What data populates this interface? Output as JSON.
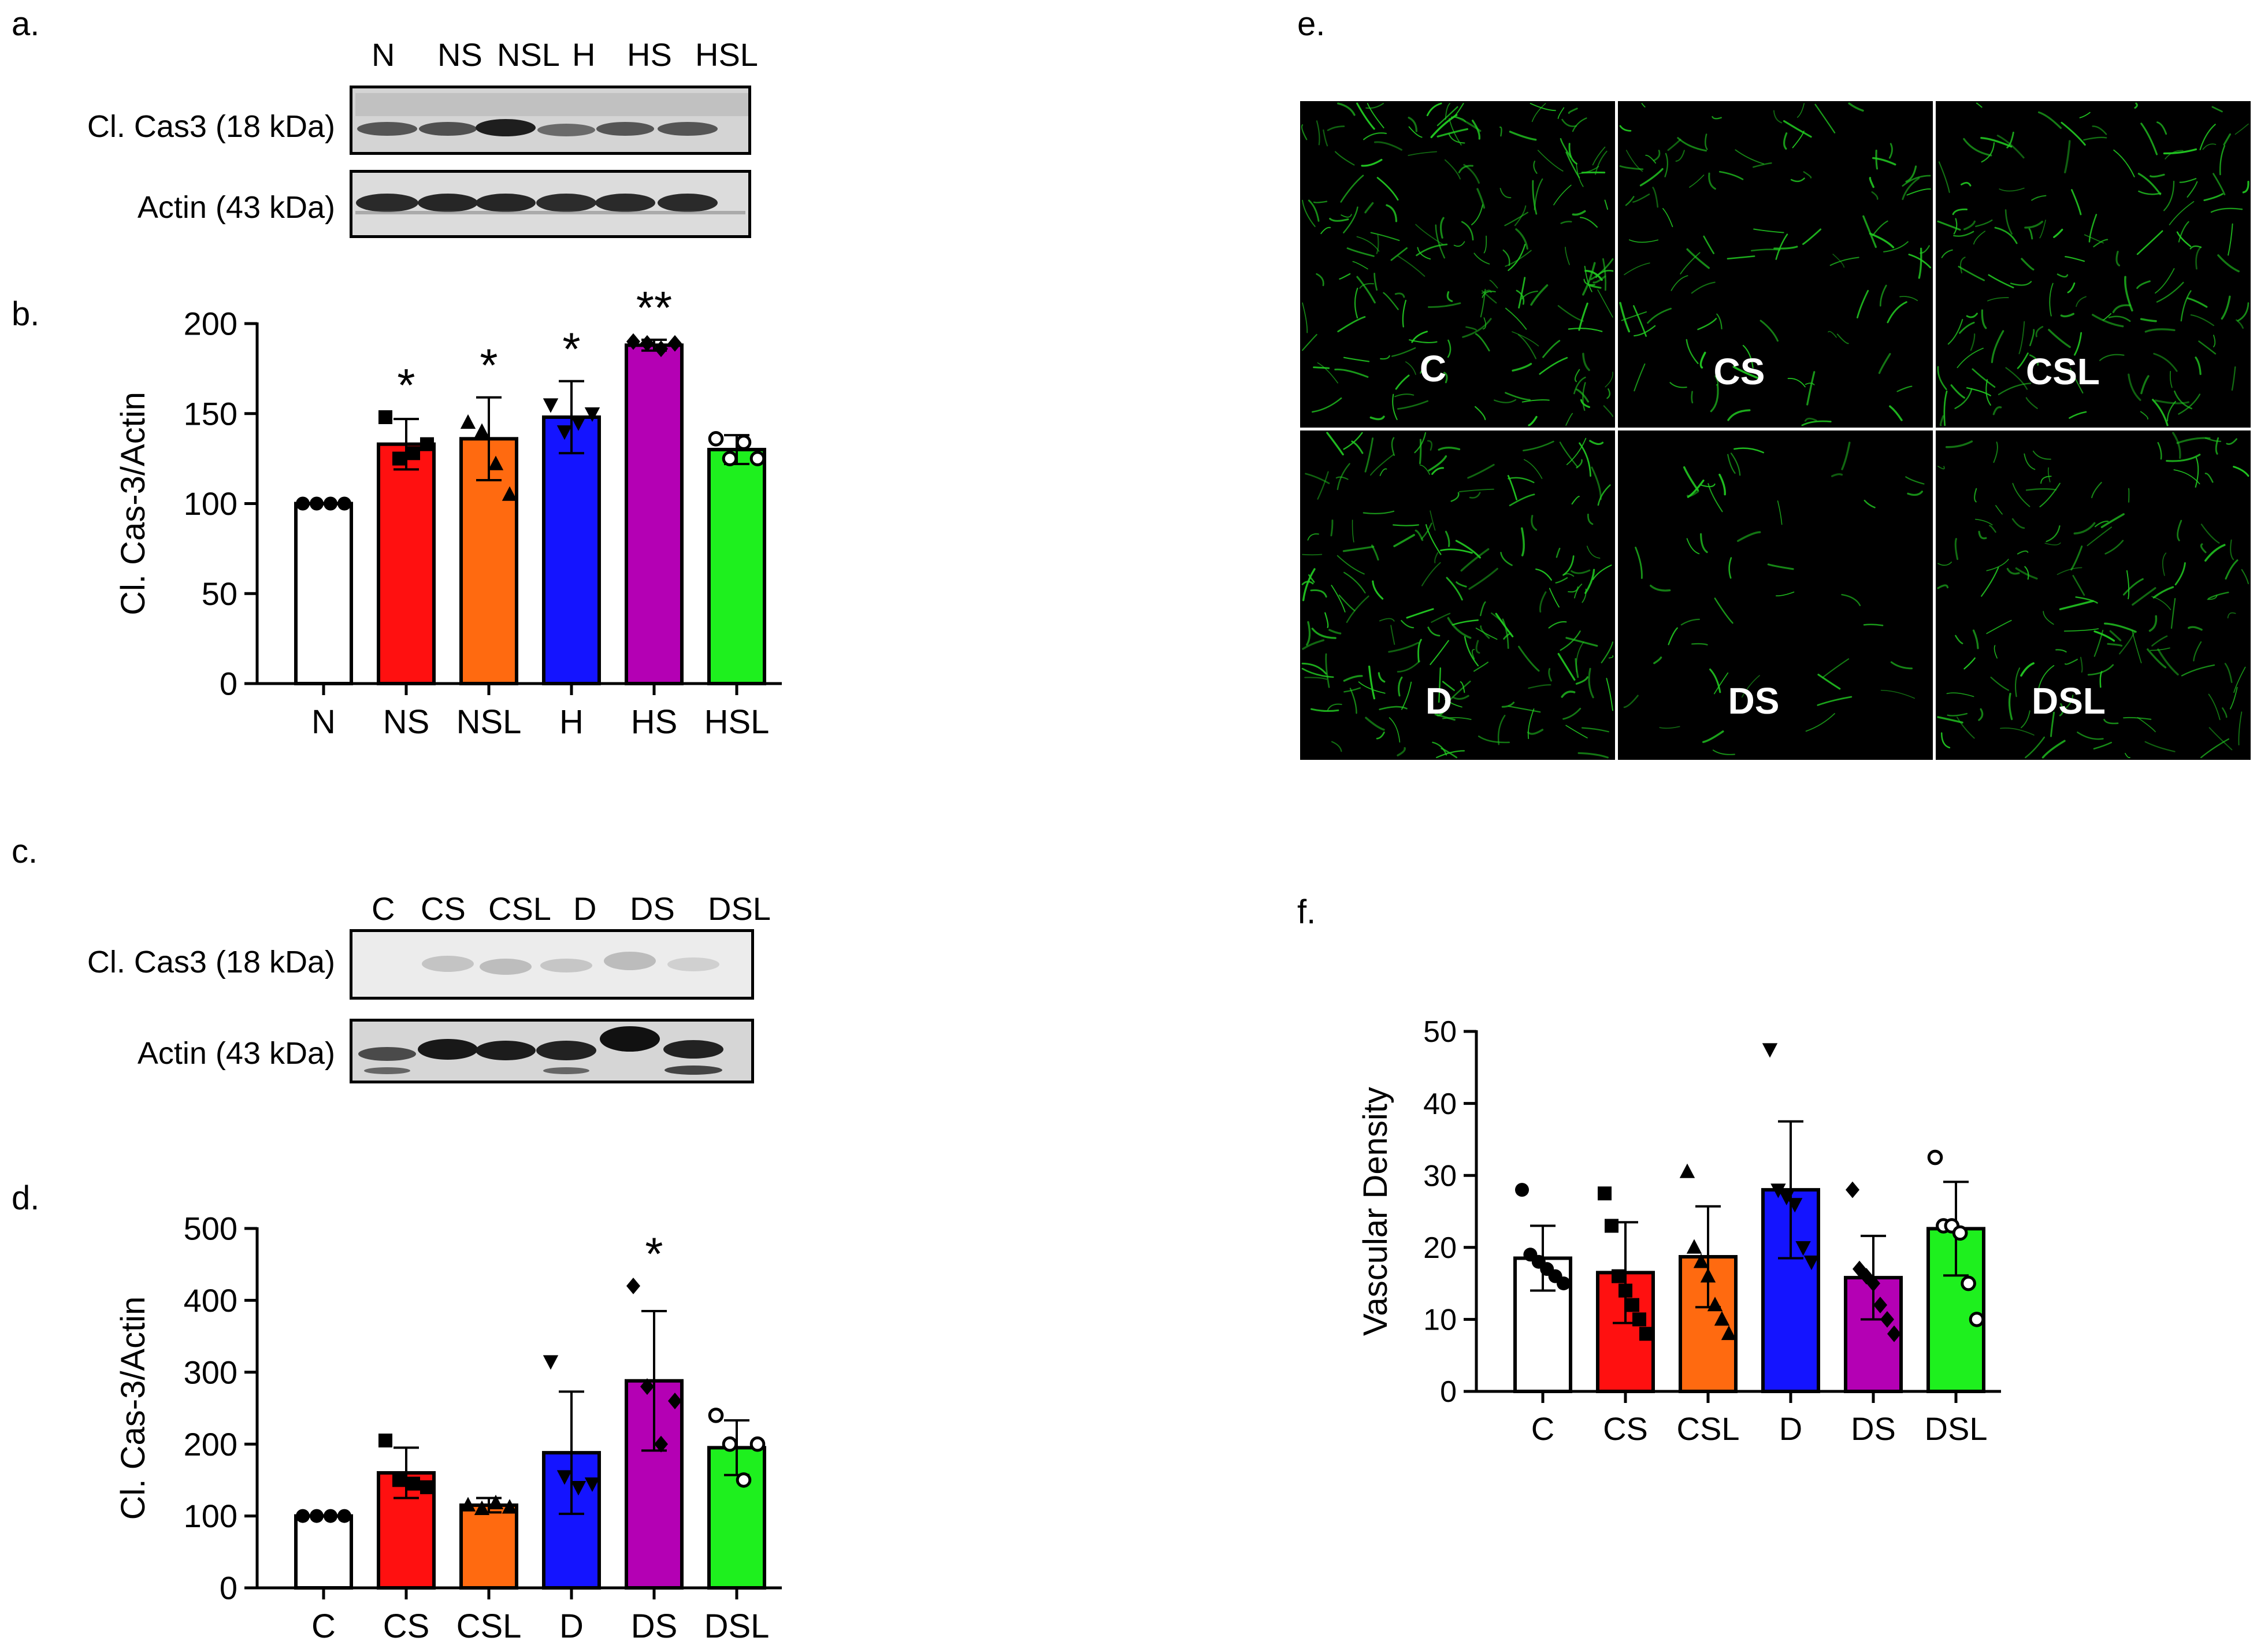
{
  "panels": {
    "a": "a.",
    "b": "b.",
    "c": "c.",
    "d": "d.",
    "e": "e.",
    "f": "f."
  },
  "blot_a": {
    "lanes": [
      "N",
      "NS",
      "NSL",
      "H",
      "HS",
      "HSL"
    ],
    "rows": [
      "Cl. Cas3 (18 kDa)",
      "Actin (43 kDa)"
    ]
  },
  "blot_c": {
    "lanes": [
      "C",
      "CS",
      "CSL",
      "D",
      "DS",
      "DSL"
    ],
    "rows": [
      "Cl. Cas3 (18 kDa)",
      "Actin (43 kDa)"
    ]
  },
  "images_e": {
    "labels": [
      "C",
      "CS",
      "CSL",
      "D",
      "DS",
      "DSL"
    ]
  },
  "colors": {
    "white": "#ffffff",
    "red": "#ff1010",
    "orange": "#ff6a10",
    "blue": "#1414ff",
    "magenta": "#b400b4",
    "green": "#1ef01e",
    "vessel": "#22cc22"
  },
  "chart_data": [
    {
      "id": "b",
      "type": "bar",
      "ylabel": "Cl. Cas-3/Actin",
      "ylim": [
        0,
        200
      ],
      "yticks": [
        0,
        50,
        100,
        150,
        200
      ],
      "categories": [
        "N",
        "NS",
        "NSL",
        "H",
        "HS",
        "HSL"
      ],
      "values": [
        100,
        133,
        136,
        148,
        188,
        130
      ],
      "errors": [
        0,
        14,
        23,
        20,
        3,
        8
      ],
      "colors": [
        "#ffffff",
        "#ff1010",
        "#ff6a10",
        "#1414ff",
        "#b400b4",
        "#1ef01e"
      ],
      "markers": [
        "circle",
        "square",
        "triangle",
        "triangle-down",
        "diamond",
        "circle-open"
      ],
      "points": [
        [
          100,
          100,
          100,
          100
        ],
        [
          148,
          125,
          128,
          133
        ],
        [
          145,
          140,
          122,
          105
        ],
        [
          155,
          140,
          145,
          150
        ],
        [
          190,
          189,
          186,
          189
        ],
        [
          136,
          125,
          134,
          125
        ]
      ],
      "significance": [
        "",
        "*",
        "*",
        "*",
        "**",
        ""
      ]
    },
    {
      "id": "d",
      "type": "bar",
      "ylabel": "Cl. Cas-3/Actin",
      "ylim": [
        0,
        500
      ],
      "yticks": [
        0,
        100,
        200,
        300,
        400,
        500
      ],
      "categories": [
        "C",
        "CS",
        "CSL",
        "D",
        "DS",
        "DSL"
      ],
      "values": [
        100,
        160,
        115,
        188,
        288,
        195
      ],
      "errors": [
        0,
        35,
        10,
        85,
        97,
        38
      ],
      "colors": [
        "#ffffff",
        "#ff1010",
        "#ff6a10",
        "#1414ff",
        "#b400b4",
        "#1ef01e"
      ],
      "markers": [
        "circle",
        "square",
        "triangle",
        "triangle-down",
        "diamond",
        "circle-open"
      ],
      "points": [
        [
          100,
          100,
          100,
          100
        ],
        [
          205,
          150,
          145,
          140
        ],
        [
          115,
          110,
          118,
          112
        ],
        [
          315,
          155,
          140,
          145
        ],
        [
          420,
          280,
          200,
          260
        ],
        [
          240,
          200,
          150,
          200
        ]
      ],
      "significance": [
        "",
        "",
        "",
        "",
        "*",
        ""
      ]
    },
    {
      "id": "f",
      "type": "bar",
      "ylabel": "Vascular Density",
      "ylim": [
        0,
        50
      ],
      "yticks": [
        0,
        10,
        20,
        30,
        40,
        50
      ],
      "categories": [
        "C",
        "CS",
        "CSL",
        "D",
        "DS",
        "DSL"
      ],
      "values": [
        18.5,
        16.5,
        18.7,
        28.0,
        15.8,
        22.6
      ],
      "errors": [
        4.5,
        7.0,
        7.0,
        9.5,
        5.8,
        6.5
      ],
      "colors": [
        "#ffffff",
        "#ff1010",
        "#ff6a10",
        "#1414ff",
        "#b400b4",
        "#1ef01e"
      ],
      "markers": [
        "circle",
        "square",
        "triangle",
        "triangle-down",
        "diamond",
        "circle-open"
      ],
      "points": [
        [
          28,
          19,
          18,
          17,
          16,
          15
        ],
        [
          27.5,
          23,
          16,
          14,
          12,
          10,
          8
        ],
        [
          30.5,
          20,
          18,
          16,
          12,
          10,
          8
        ],
        [
          47.5,
          28,
          27,
          26,
          20,
          18
        ],
        [
          28,
          17,
          16,
          15,
          12,
          10,
          8
        ],
        [
          32.5,
          23,
          23,
          22,
          15,
          10
        ]
      ],
      "significance": [
        "",
        "",
        "",
        "",
        "",
        ""
      ]
    }
  ]
}
